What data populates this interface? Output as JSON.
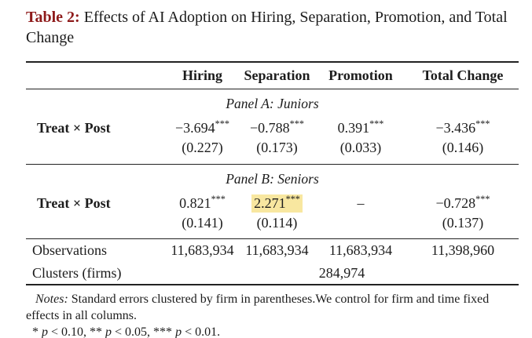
{
  "colors": {
    "title_accent": "#8e1b1b",
    "highlight": "#f8e7a0",
    "rule": "#222222"
  },
  "title": {
    "label": "Table 2:",
    "text": "Effects of AI Adoption on Hiring, Separation, Promotion, and Total Change"
  },
  "table": {
    "columns": [
      "Hiring",
      "Separation",
      "Promotion",
      "Total Change"
    ],
    "panels": [
      {
        "name": "Panel A: Juniors",
        "row_label": "Treat × Post",
        "cells": [
          {
            "value": "−3.694",
            "stars": "***",
            "se": "(0.227)"
          },
          {
            "value": "−0.788",
            "stars": "***",
            "se": "(0.173)"
          },
          {
            "value": "0.391",
            "stars": "***",
            "se": "(0.033)"
          },
          {
            "value": "−3.436",
            "stars": "***",
            "se": "(0.146)"
          }
        ]
      },
      {
        "name": "Panel B: Seniors",
        "row_label": "Treat × Post",
        "cells": [
          {
            "value": "0.821",
            "stars": "***",
            "se": "(0.141)"
          },
          {
            "value": "2.271",
            "stars": "***",
            "se": "(0.114)",
            "highlighted": true
          },
          {
            "value": "–",
            "stars": "",
            "se": ""
          },
          {
            "value": "−0.728",
            "stars": "***",
            "se": "(0.137)"
          }
        ]
      }
    ],
    "summary": {
      "observations_label": "Observations",
      "observations": [
        "11,683,934",
        "11,683,934",
        "11,683,934",
        "11,398,960"
      ],
      "clusters_label": "Clusters (firms)",
      "clusters_value": "284,974"
    }
  },
  "notes": {
    "label": "Notes:",
    "text": "Standard errors clustered by firm in parentheses.We control for firm and time fixed effects in all columns.",
    "significance": {
      "parts": [
        "* ",
        "p",
        " < 0.10, ** ",
        "p",
        " < 0.05, *** ",
        "p",
        " < 0.01."
      ]
    }
  }
}
